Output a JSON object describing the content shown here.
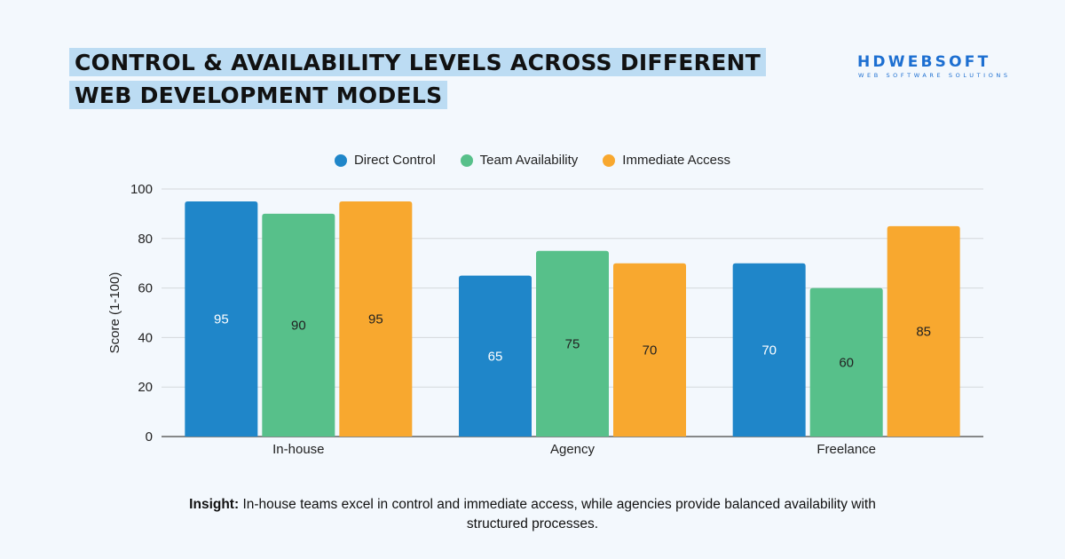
{
  "title": {
    "line1": "CONTROL & AVAILABILITY LEVELS ACROSS DIFFERENT",
    "line2": "WEB DEVELOPMENT MODELS"
  },
  "logo": {
    "name": "HDWEBSOFT",
    "tagline": "WEB SOFTWARE SOLUTIONS",
    "color": "#1d6fd1"
  },
  "chart_data": {
    "type": "bar",
    "categories": [
      "In-house",
      "Agency",
      "Freelance"
    ],
    "series": [
      {
        "name": "Direct Control",
        "color": "#1f86c9",
        "values": [
          95,
          65,
          70
        ]
      },
      {
        "name": "Team Availability",
        "color": "#57c08a",
        "values": [
          90,
          75,
          60
        ]
      },
      {
        "name": "Immediate Access",
        "color": "#f8a82f",
        "values": [
          95,
          70,
          85
        ]
      }
    ],
    "ylabel": "Score (1-100)",
    "ylim": [
      0,
      100
    ],
    "yticks": [
      0,
      20,
      40,
      60,
      80,
      100
    ],
    "grid": true,
    "data_labels": true,
    "legend_position": "top-center"
  },
  "insight": {
    "label": "Insight:",
    "text": " In-house teams excel in control and immediate access, while agencies provide balanced availability with structured processes."
  }
}
